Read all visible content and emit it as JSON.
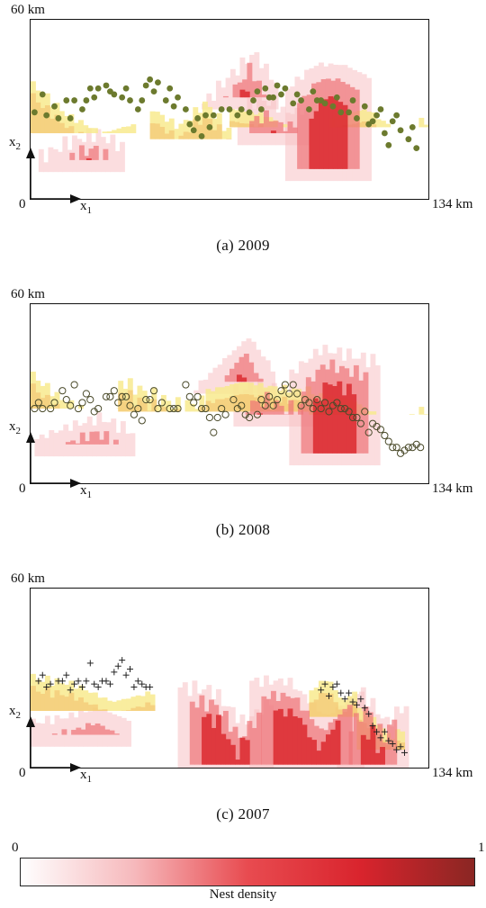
{
  "axes": {
    "ymax_label": "60 km",
    "xmax_label": "134 km",
    "origin_label": "0",
    "x_axis": "x",
    "x_sub": "1",
    "y_axis": "x",
    "y_sub": "2"
  },
  "panels": [
    {
      "id": "2009",
      "caption": "(a)  2009",
      "marker": "filled-circle",
      "red": [
        [
          5,
          20,
          13,
          9,
          14,
          17
        ],
        [
          46,
          59,
          34,
          27,
          36,
          44
        ],
        [
          55,
          67,
          22,
          26,
          28,
          24
        ],
        [
          67,
          82,
          10,
          32,
          40,
          40
        ]
      ],
      "yellow": [
        [
          0,
          26,
          22,
          38,
          28,
          22
        ],
        [
          30,
          50,
          20,
          30,
          24,
          32
        ],
        [
          50,
          76,
          24,
          30,
          28,
          20
        ],
        [
          76,
          100,
          24,
          28,
          30,
          22
        ]
      ],
      "markers": [
        [
          1,
          29
        ],
        [
          3,
          35
        ],
        [
          4,
          28
        ],
        [
          6,
          31
        ],
        [
          7,
          27
        ],
        [
          9,
          33
        ],
        [
          10,
          27
        ],
        [
          11,
          33
        ],
        [
          13,
          30
        ],
        [
          14,
          33
        ],
        [
          15,
          37
        ],
        [
          16,
          34
        ],
        [
          17,
          37
        ],
        [
          19,
          38
        ],
        [
          20,
          36
        ],
        [
          21,
          35
        ],
        [
          23,
          34
        ],
        [
          24,
          37
        ],
        [
          25,
          33
        ],
        [
          27,
          30
        ],
        [
          28,
          33
        ],
        [
          29,
          38
        ],
        [
          30,
          40
        ],
        [
          31,
          36
        ],
        [
          32,
          39
        ],
        [
          34,
          33
        ],
        [
          35,
          37
        ],
        [
          36,
          31
        ],
        [
          37,
          34
        ],
        [
          39,
          30
        ],
        [
          40,
          25
        ],
        [
          41,
          23
        ],
        [
          42,
          27
        ],
        [
          43,
          21
        ],
        [
          44,
          28
        ],
        [
          45,
          24
        ],
        [
          46,
          28
        ],
        [
          48,
          30
        ],
        [
          50,
          30
        ],
        [
          52,
          28
        ],
        [
          53,
          30
        ],
        [
          55,
          29
        ],
        [
          56,
          33
        ],
        [
          57,
          36
        ],
        [
          58,
          30
        ],
        [
          59,
          37
        ],
        [
          60,
          34
        ],
        [
          61,
          34
        ],
        [
          62,
          38
        ],
        [
          63,
          35
        ],
        [
          64,
          37
        ],
        [
          66,
          32
        ],
        [
          67,
          35
        ],
        [
          68,
          33
        ],
        [
          70,
          30
        ],
        [
          71,
          36
        ],
        [
          72,
          33
        ],
        [
          73,
          33
        ],
        [
          74,
          32
        ],
        [
          76,
          31
        ],
        [
          77,
          34
        ],
        [
          78,
          29
        ],
        [
          80,
          29
        ],
        [
          81,
          33
        ],
        [
          82,
          27
        ],
        [
          84,
          31
        ],
        [
          85,
          25
        ],
        [
          86,
          26
        ],
        [
          87,
          28
        ],
        [
          88,
          30
        ],
        [
          89,
          22
        ],
        [
          90,
          18
        ],
        [
          91,
          26
        ],
        [
          92,
          28
        ],
        [
          93,
          23
        ],
        [
          95,
          20
        ],
        [
          96,
          24
        ],
        [
          97,
          17
        ]
      ]
    },
    {
      "id": "2008",
      "caption": "(b)  2008",
      "marker": "open-circle",
      "red": [
        [
          4,
          22,
          13,
          10,
          14,
          17
        ],
        [
          44,
          58,
          34,
          27,
          36,
          44
        ],
        [
          54,
          68,
          23,
          26,
          28,
          25
        ],
        [
          68,
          84,
          10,
          32,
          40,
          38
        ]
      ],
      "yellow": [
        [
          0,
          22,
          25,
          36,
          28,
          24
        ],
        [
          22,
          44,
          24,
          34,
          30,
          26
        ],
        [
          44,
          70,
          24,
          31,
          34,
          32
        ],
        [
          70,
          100,
          23,
          30,
          28,
          20
        ]
      ],
      "markers": [
        [
          1,
          25
        ],
        [
          2,
          27
        ],
        [
          3,
          25
        ],
        [
          5,
          25
        ],
        [
          6,
          27
        ],
        [
          8,
          31
        ],
        [
          9,
          28
        ],
        [
          10,
          26
        ],
        [
          11,
          33
        ],
        [
          12,
          25
        ],
        [
          13,
          27
        ],
        [
          14,
          30
        ],
        [
          15,
          28
        ],
        [
          16,
          24
        ],
        [
          17,
          25
        ],
        [
          19,
          29
        ],
        [
          20,
          29
        ],
        [
          21,
          31
        ],
        [
          22,
          27
        ],
        [
          23,
          29
        ],
        [
          24,
          29
        ],
        [
          25,
          26
        ],
        [
          26,
          23
        ],
        [
          27,
          25
        ],
        [
          28,
          21
        ],
        [
          29,
          28
        ],
        [
          30,
          28
        ],
        [
          31,
          31
        ],
        [
          32,
          25
        ],
        [
          33,
          27
        ],
        [
          35,
          25
        ],
        [
          36,
          25
        ],
        [
          37,
          25
        ],
        [
          39,
          33
        ],
        [
          40,
          29
        ],
        [
          41,
          27
        ],
        [
          42,
          29
        ],
        [
          43,
          25
        ],
        [
          44,
          25
        ],
        [
          45,
          22
        ],
        [
          46,
          17
        ],
        [
          47,
          22
        ],
        [
          48,
          25
        ],
        [
          49,
          23
        ],
        [
          51,
          28
        ],
        [
          52,
          25
        ],
        [
          53,
          26
        ],
        [
          54,
          23
        ],
        [
          55,
          22
        ],
        [
          57,
          23
        ],
        [
          58,
          28
        ],
        [
          59,
          26
        ],
        [
          60,
          29
        ],
        [
          61,
          26
        ],
        [
          62,
          28
        ],
        [
          63,
          31
        ],
        [
          64,
          33
        ],
        [
          65,
          30
        ],
        [
          66,
          33
        ],
        [
          67,
          30
        ],
        [
          68,
          26
        ],
        [
          69,
          28
        ],
        [
          70,
          27
        ],
        [
          71,
          25
        ],
        [
          72,
          28
        ],
        [
          73,
          25
        ],
        [
          74,
          27
        ],
        [
          75,
          24
        ],
        [
          76,
          26
        ],
        [
          77,
          27
        ],
        [
          78,
          25
        ],
        [
          79,
          25
        ],
        [
          80,
          24
        ],
        [
          81,
          22
        ],
        [
          82,
          22
        ],
        [
          83,
          20
        ],
        [
          84,
          24
        ],
        [
          85,
          17
        ],
        [
          86,
          20
        ],
        [
          87,
          19
        ],
        [
          88,
          18
        ],
        [
          89,
          16
        ],
        [
          90,
          14
        ],
        [
          91,
          12
        ],
        [
          92,
          12
        ],
        [
          93,
          10
        ],
        [
          94,
          11
        ],
        [
          95,
          12
        ],
        [
          96,
          12
        ],
        [
          97,
          13
        ],
        [
          98,
          12
        ]
      ]
    },
    {
      "id": "2007",
      "caption": "(c)  2007",
      "marker": "plus",
      "red": [
        [
          3,
          22,
          11,
          10,
          12,
          15
        ],
        [
          40,
          58,
          1,
          22,
          21,
          10
        ],
        [
          58,
          80,
          1,
          24,
          24,
          12
        ],
        [
          80,
          92,
          1,
          14,
          20,
          10
        ]
      ],
      "yellow": [
        [
          0,
          30,
          19,
          30,
          28,
          22
        ],
        [
          30,
          36,
          0,
          0,
          0,
          0
        ],
        [
          70,
          82,
          17,
          26,
          30,
          22
        ],
        [
          82,
          94,
          6,
          20,
          16,
          10
        ]
      ],
      "markers": [
        [
          2,
          29
        ],
        [
          3,
          31
        ],
        [
          4,
          27
        ],
        [
          5,
          28
        ],
        [
          7,
          29
        ],
        [
          8,
          29
        ],
        [
          9,
          31
        ],
        [
          10,
          26
        ],
        [
          11,
          28
        ],
        [
          12,
          29
        ],
        [
          13,
          27
        ],
        [
          14,
          29
        ],
        [
          15,
          35
        ],
        [
          16,
          28
        ],
        [
          17,
          27
        ],
        [
          18,
          29
        ],
        [
          19,
          29
        ],
        [
          20,
          28
        ],
        [
          21,
          32
        ],
        [
          22,
          34
        ],
        [
          23,
          36
        ],
        [
          24,
          31
        ],
        [
          25,
          33
        ],
        [
          26,
          27
        ],
        [
          27,
          29
        ],
        [
          28,
          28
        ],
        [
          29,
          27
        ],
        [
          30,
          27
        ],
        [
          73,
          26
        ],
        [
          74,
          28
        ],
        [
          75,
          24
        ],
        [
          76,
          27
        ],
        [
          77,
          28
        ],
        [
          78,
          25
        ],
        [
          79,
          23
        ],
        [
          80,
          25
        ],
        [
          81,
          22
        ],
        [
          82,
          21
        ],
        [
          83,
          23
        ],
        [
          84,
          20
        ],
        [
          85,
          18
        ],
        [
          86,
          14
        ],
        [
          87,
          12
        ],
        [
          88,
          10
        ],
        [
          89,
          12
        ],
        [
          90,
          9
        ],
        [
          91,
          8
        ],
        [
          92,
          6
        ],
        [
          93,
          7
        ],
        [
          94,
          5
        ]
      ]
    }
  ],
  "colorbar": {
    "min_label": "0",
    "max_label": "1",
    "title": "Nest density",
    "stops": [
      "#ffffff",
      "#f6b9bc",
      "#e84b50",
      "#d9242d",
      "#8a2623"
    ]
  },
  "colors": {
    "red_core": "#dc2a2f",
    "red_mid": "#ef7478",
    "pink": "#f8c3c5",
    "yellow": "#f8ea8f",
    "orange": "#f0a24a",
    "filled_marker": "#6c7a2e"
  }
}
